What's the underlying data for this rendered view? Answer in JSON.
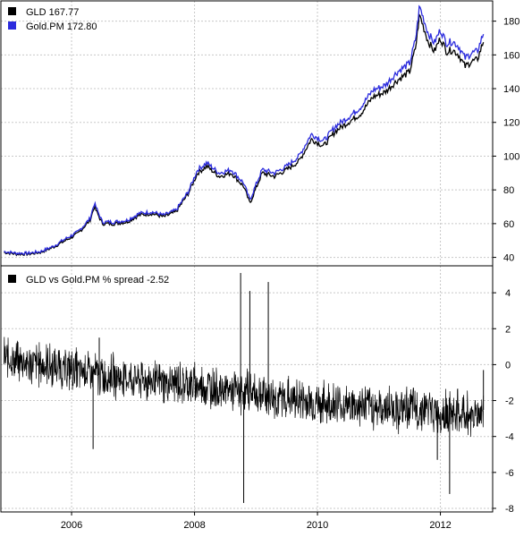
{
  "colors": {
    "gld": "#000000",
    "gold_pm": "#2b2bdd",
    "spread": "#000000",
    "grid": "#c8c8c8",
    "frame": "#000000"
  },
  "chart_data": [
    {
      "type": "line",
      "panel": "price",
      "legend": [
        "GLD 167.77",
        "Gold.PM 172.80"
      ],
      "legend_position": "top-left",
      "grid": true,
      "ylim": [
        35,
        192
      ],
      "y_ticks": [
        40,
        60,
        80,
        100,
        120,
        140,
        160,
        180
      ],
      "x_range": [
        2004.85,
        2012.85
      ],
      "series": [
        {
          "name": "GLD",
          "x": [
            2004.9,
            2005.1,
            2005.3,
            2005.5,
            2005.7,
            2005.9,
            2006.1,
            2006.3,
            2006.37,
            2006.5,
            2006.7,
            2006.9,
            2007.1,
            2007.3,
            2007.5,
            2007.7,
            2007.9,
            2008.05,
            2008.2,
            2008.4,
            2008.6,
            2008.8,
            2008.9,
            2009.1,
            2009.3,
            2009.5,
            2009.7,
            2009.9,
            2010.1,
            2010.3,
            2010.5,
            2010.7,
            2010.9,
            2011.1,
            2011.3,
            2011.5,
            2011.6,
            2011.66,
            2011.8,
            2011.9,
            2012.0,
            2012.1,
            2012.2,
            2012.3,
            2012.4,
            2012.5,
            2012.6,
            2012.7
          ],
          "values": [
            43,
            42,
            42,
            43,
            46,
            50,
            54,
            62,
            70,
            60,
            60,
            61,
            65,
            66,
            64,
            67,
            78,
            90,
            94,
            88,
            90,
            82,
            72,
            90,
            88,
            92,
            97,
            110,
            106,
            115,
            120,
            125,
            135,
            138,
            145,
            150,
            165,
            184,
            168,
            162,
            170,
            162,
            163,
            160,
            153,
            156,
            157,
            168
          ]
        },
        {
          "name": "Gold.PM",
          "x": [
            2004.9,
            2005.1,
            2005.3,
            2005.5,
            2005.7,
            2005.9,
            2006.1,
            2006.3,
            2006.37,
            2006.5,
            2006.7,
            2006.9,
            2007.1,
            2007.3,
            2007.5,
            2007.7,
            2007.9,
            2008.05,
            2008.2,
            2008.4,
            2008.6,
            2008.8,
            2008.9,
            2009.1,
            2009.3,
            2009.5,
            2009.7,
            2009.9,
            2010.1,
            2010.3,
            2010.5,
            2010.7,
            2010.9,
            2011.1,
            2011.3,
            2011.5,
            2011.6,
            2011.66,
            2011.8,
            2011.9,
            2012.0,
            2012.1,
            2012.2,
            2012.3,
            2012.4,
            2012.5,
            2012.6,
            2012.7
          ],
          "values": [
            43.5,
            42.5,
            42.5,
            43.5,
            46.5,
            51,
            55,
            63,
            72,
            61,
            61,
            62,
            66,
            67,
            65,
            68,
            79,
            92,
            96,
            90,
            92,
            84,
            74,
            92,
            90,
            94,
            100,
            113,
            109,
            118,
            123,
            129,
            139,
            142,
            150,
            155,
            170,
            189,
            173,
            167,
            175,
            167,
            168,
            165,
            158,
            161,
            162,
            172.8
          ]
        }
      ]
    },
    {
      "type": "line",
      "panel": "spread",
      "legend": [
        "GLD vs Gold.PM % spread -2.52"
      ],
      "legend_position": "top-left",
      "grid": true,
      "ylim": [
        -8.2,
        5.5
      ],
      "y_ticks": [
        -8,
        -6,
        -4,
        -2,
        0,
        2,
        4
      ],
      "x_ticks": [
        "2006",
        "2008",
        "2010",
        "2012"
      ],
      "x_tick_values": [
        2006,
        2008,
        2010,
        2012
      ],
      "x_range": [
        2004.85,
        2012.85
      ],
      "series": [
        {
          "name": "GLD vs Gold.PM % spread",
          "trend_x": [
            2004.9,
            2005.5,
            2006.0,
            2006.5,
            2007.0,
            2007.5,
            2008.0,
            2008.5,
            2009.0,
            2009.5,
            2010.0,
            2010.5,
            2011.0,
            2011.5,
            2012.0,
            2012.5,
            2012.7
          ],
          "trend_values": [
            0.3,
            0.0,
            -0.3,
            -0.6,
            -0.8,
            -1.0,
            -1.1,
            -1.4,
            -1.6,
            -1.9,
            -2.1,
            -2.3,
            -2.4,
            -2.5,
            -2.6,
            -2.8,
            -2.52
          ],
          "spikes_x": [
            2006.35,
            2006.45,
            2008.75,
            2008.8,
            2008.9,
            2009.2,
            2011.95,
            2012.15,
            2012.7
          ],
          "spikes_values": [
            -4.7,
            1.5,
            5.1,
            -7.7,
            4.1,
            4.6,
            -5.3,
            -7.2,
            -0.3
          ]
        }
      ]
    }
  ]
}
